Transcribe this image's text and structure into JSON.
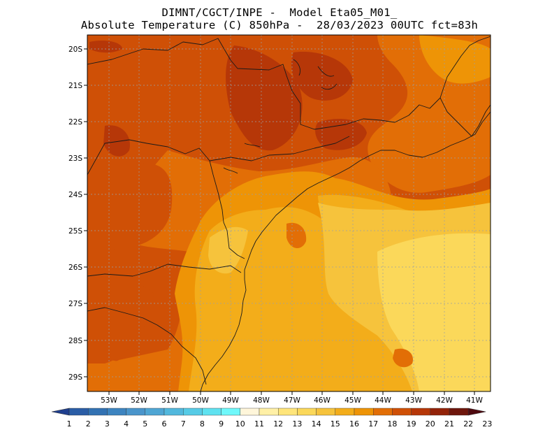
{
  "title": {
    "line1": "DIMNT/CGCT/INPE -  Model Eta05_M01_",
    "line2": "Absolute Temperature (C) 850hPa -  28/03/2023 00UTC fct=83h"
  },
  "map": {
    "lat_labels": [
      "20S",
      "21S",
      "22S",
      "23S",
      "24S",
      "25S",
      "26S",
      "27S",
      "28S",
      "29S"
    ],
    "lon_labels": [
      "53W",
      "52W",
      "51W",
      "50W",
      "49W",
      "48W",
      "47W",
      "46W",
      "45W",
      "44W",
      "43W",
      "42W",
      "41W"
    ],
    "lat_range": [
      -29.5,
      -19.9
    ],
    "lon_range": [
      -53.7,
      -40.6
    ]
  },
  "colorbar": {
    "labels": [
      "1",
      "2",
      "3",
      "4",
      "5",
      "6",
      "7",
      "8",
      "9",
      "10",
      "11",
      "12",
      "13",
      "14",
      "15",
      "16",
      "17",
      "18",
      "19",
      "20",
      "21",
      "22",
      "23"
    ],
    "colors": [
      "#1f3f8f",
      "#2a5da6",
      "#3272b3",
      "#3d84c0",
      "#4a95cb",
      "#4fa6d4",
      "#52b8dd",
      "#56cbe6",
      "#5fe2f0",
      "#6ff8fb",
      "#fff6da",
      "#fff0a6",
      "#ffe57a",
      "#fbd85a",
      "#f6c33c",
      "#f3ad1a",
      "#ee9406",
      "#e26e06",
      "#cf5006",
      "#b63708",
      "#932309",
      "#6e160c",
      "#4f0a10"
    ]
  }
}
